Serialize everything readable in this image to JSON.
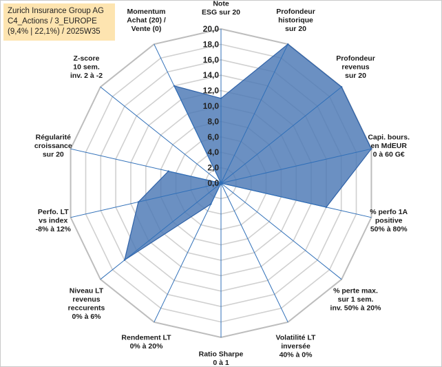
{
  "title": {
    "line1": "Zurich Insurance Group AG",
    "line2": "C4_Actions / 3_EUROPE",
    "line3": "(9,4% | 22,1%) / 2025W35"
  },
  "chart_data": {
    "type": "radar",
    "rmin": 0,
    "rmax": 20,
    "ticks": [
      "0,0",
      "2,0",
      "4,0",
      "6,0",
      "8,0",
      "10,0",
      "12,0",
      "14,0",
      "16,0",
      "18,0",
      "20,0"
    ],
    "categories": [
      [
        "Note",
        "ESG sur 20"
      ],
      [
        "Profondeur",
        "historique",
        "sur 20"
      ],
      [
        "Profondeur",
        "revenus",
        "sur 20"
      ],
      [
        "Capi. bours.",
        "en MdEUR",
        "0 à 60 G€"
      ],
      [
        "% perfo 1A",
        "positive",
        "50% à 80%"
      ],
      [
        "% perte max.",
        "sur 1 sem.",
        "inv. 50% à 20%"
      ],
      [
        "Volatilité LT",
        "inversée",
        "40% à 0%"
      ],
      [
        "Ratio Sharpe",
        "0 à 1"
      ],
      [
        "Rendement LT",
        "0% à 20%"
      ],
      [
        "Niveau LT",
        "revenus",
        "reccurents",
        "0% à 6%"
      ],
      [
        "Perfo. LT",
        "vs index",
        "-8% à 12%"
      ],
      [
        "Régularité",
        "croissance",
        "sur 20"
      ],
      [
        "Z-score",
        "10 sem.",
        "inv. 2 à -2"
      ],
      [
        "Momentum",
        "Achat (20) /",
        "Vente (0)"
      ]
    ],
    "values": [
      11,
      20,
      20,
      20,
      14,
      0,
      0,
      0,
      3,
      16,
      11,
      7,
      0,
      14
    ],
    "colors": {
      "fill": "#4a78b5",
      "stroke": "#2f62a8",
      "grid": "#d0d0d0",
      "spoke": "#2f6fb8"
    },
    "grid": true
  }
}
